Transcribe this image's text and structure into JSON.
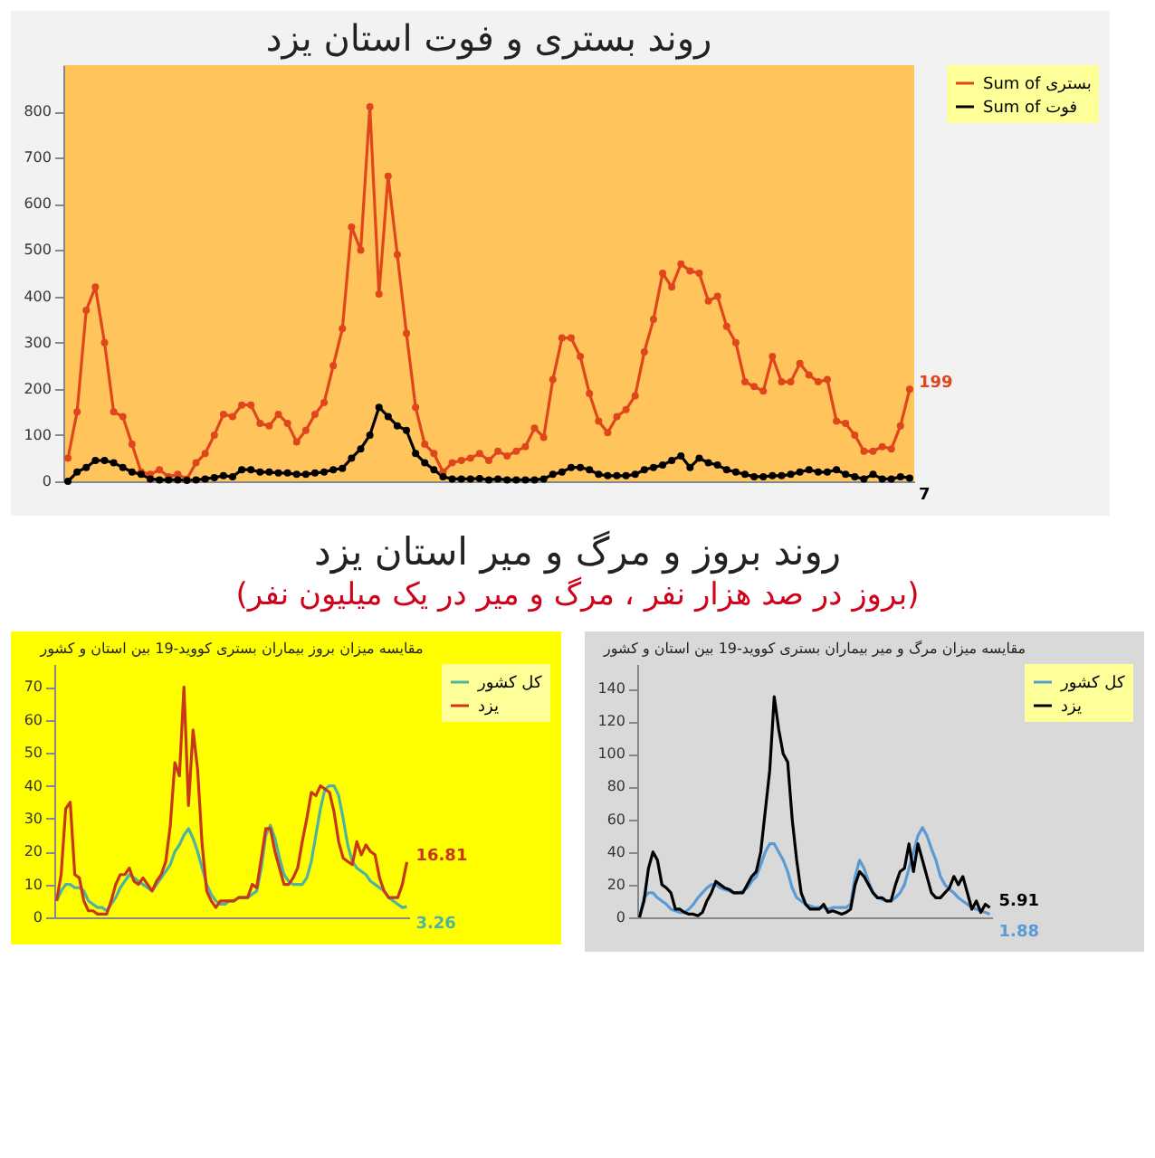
{
  "chart_data": [
    {
      "type": "line",
      "title": "روند بستری و فوت استان یزد",
      "categories": [
        null,
        null,
        null,
        null,
        null,
        null,
        null,
        null,
        null,
        null,
        null,
        null,
        null,
        null,
        null,
        null,
        null,
        null,
        null,
        null,
        null,
        null,
        null,
        null,
        null,
        null,
        null,
        null,
        null,
        null,
        null,
        null,
        null,
        null,
        null,
        null,
        null,
        null,
        null,
        null,
        null,
        null,
        null,
        null,
        null,
        null,
        null,
        null,
        null,
        null,
        null,
        null,
        null,
        null,
        null,
        null,
        null,
        null,
        null,
        null,
        null,
        null,
        null,
        null,
        null,
        null,
        null,
        null,
        null,
        null,
        null,
        null,
        null,
        null,
        null,
        null,
        null,
        null,
        null,
        null,
        null,
        null,
        null,
        null,
        null,
        null,
        null,
        null,
        null,
        null,
        null,
        null,
        null
      ],
      "ylim": [
        0,
        900
      ],
      "yticks": [
        0,
        100,
        200,
        300,
        400,
        500,
        600,
        700,
        800
      ],
      "legend": "right",
      "marker": "circle",
      "series": [
        {
          "name": "Sum of بستری",
          "color": "#e0461c",
          "values": [
            50,
            150,
            370,
            420,
            300,
            150,
            140,
            80,
            20,
            15,
            25,
            10,
            15,
            5,
            40,
            60,
            100,
            145,
            140,
            165,
            165,
            125,
            120,
            145,
            125,
            85,
            110,
            145,
            170,
            250,
            330,
            550,
            500,
            810,
            405,
            660,
            490,
            320,
            160,
            80,
            60,
            20,
            40,
            45,
            50,
            60,
            45,
            65,
            55,
            65,
            75,
            115,
            95,
            220,
            310,
            310,
            270,
            190,
            130,
            105,
            140,
            155,
            185,
            280,
            350,
            450,
            420,
            470,
            455,
            450,
            390,
            400,
            335,
            300,
            215,
            205,
            195,
            270,
            215,
            215,
            255,
            230,
            215,
            220,
            130,
            125,
            100,
            65,
            65,
            75,
            70,
            120,
            199
          ],
          "value_labels": [
            null,
            null,
            null,
            null,
            null,
            null,
            null,
            null,
            null,
            null,
            null,
            null,
            null,
            null,
            null,
            null,
            null,
            null,
            null,
            null,
            null,
            null,
            null,
            null,
            null,
            null,
            null,
            null,
            null,
            null,
            null,
            null,
            null,
            null,
            null,
            null,
            null,
            null,
            null,
            null,
            null,
            null,
            null,
            null,
            null,
            null,
            null,
            null,
            null,
            null,
            null,
            null,
            null,
            null,
            null,
            null,
            null,
            null,
            null,
            null,
            null,
            null,
            null,
            null,
            null,
            null,
            null,
            null,
            null,
            null,
            null,
            null,
            null,
            null,
            null,
            null,
            null,
            null,
            null,
            null,
            null,
            null,
            null,
            null,
            null,
            null,
            null,
            null,
            null,
            null,
            null,
            null,
            "199"
          ]
        },
        {
          "name": "Sum of فوت",
          "color": "#000000",
          "values": [
            0,
            20,
            30,
            45,
            45,
            40,
            30,
            20,
            15,
            5,
            3,
            3,
            3,
            2,
            3,
            5,
            8,
            12,
            10,
            25,
            25,
            20,
            20,
            18,
            18,
            15,
            15,
            18,
            20,
            25,
            28,
            50,
            70,
            100,
            160,
            140,
            120,
            110,
            60,
            40,
            25,
            10,
            5,
            5,
            5,
            6,
            3,
            5,
            3,
            3,
            3,
            3,
            5,
            15,
            20,
            30,
            30,
            25,
            15,
            12,
            12,
            12,
            15,
            25,
            30,
            35,
            45,
            55,
            30,
            50,
            40,
            35,
            25,
            20,
            15,
            10,
            10,
            12,
            12,
            15,
            20,
            25,
            20,
            20,
            25,
            15,
            10,
            5,
            15,
            5,
            5,
            10,
            7
          ],
          "value_labels": [
            null,
            null,
            null,
            null,
            null,
            null,
            null,
            null,
            null,
            null,
            null,
            null,
            null,
            null,
            null,
            null,
            null,
            null,
            null,
            null,
            null,
            null,
            null,
            null,
            null,
            null,
            null,
            null,
            null,
            null,
            null,
            null,
            null,
            null,
            null,
            null,
            null,
            null,
            null,
            null,
            null,
            null,
            null,
            null,
            null,
            null,
            null,
            null,
            null,
            null,
            null,
            null,
            null,
            null,
            null,
            null,
            null,
            null,
            null,
            null,
            null,
            null,
            null,
            null,
            null,
            null,
            null,
            null,
            null,
            null,
            null,
            null,
            null,
            null,
            null,
            null,
            null,
            null,
            null,
            null,
            null,
            null,
            null,
            null,
            null,
            null,
            null,
            null,
            null,
            null,
            null,
            null,
            "7"
          ]
        }
      ]
    },
    {
      "type": "other",
      "title": "روند بروز و مرگ و میر استان یزد",
      "subtitle": "(بروز در صد هزار نفر ، مرگ و میر در یک میلیون نفر)"
    },
    {
      "type": "line",
      "title": "مقایسه میزان بروز بیماران بستری کووید-19 بین استان و کشور",
      "categories": [
        null,
        null,
        null,
        null,
        null,
        null,
        null,
        null,
        null,
        null,
        null,
        null,
        null,
        null,
        null,
        null,
        null,
        null,
        null,
        null,
        null,
        null,
        null,
        null,
        null,
        null,
        null,
        null,
        null,
        null,
        null,
        null,
        null,
        null,
        null,
        null,
        null,
        null,
        null,
        null,
        null,
        null,
        null,
        null,
        null,
        null,
        null,
        null,
        null,
        null,
        null,
        null,
        null,
        null,
        null,
        null,
        null,
        null,
        null,
        null,
        null,
        null,
        null,
        null,
        null,
        null,
        null,
        null,
        null,
        null,
        null,
        null,
        null,
        null,
        null,
        null,
        null,
        null
      ],
      "ylim": [
        0,
        77
      ],
      "yticks": [
        0,
        10,
        20,
        30,
        40,
        50,
        60,
        70
      ],
      "legend": "right",
      "series": [
        {
          "name": "کل کشور",
          "color": "#4fb3a0",
          "values": [
            5,
            8,
            10,
            10,
            9,
            9,
            8,
            5,
            4,
            3,
            3,
            2,
            4,
            6,
            9,
            11,
            13,
            12,
            11,
            10,
            9,
            8,
            10,
            12,
            14,
            16,
            20,
            22,
            25,
            27,
            24,
            20,
            15,
            10,
            7,
            5,
            4,
            4,
            5,
            5,
            6,
            6,
            6,
            7,
            8,
            15,
            25,
            28,
            24,
            18,
            13,
            11,
            10,
            10,
            10,
            12,
            17,
            25,
            33,
            39,
            40,
            40,
            37,
            30,
            22,
            17,
            15,
            14,
            13,
            11,
            10,
            9,
            8,
            6,
            5,
            4,
            3,
            3.26
          ],
          "value_labels": [
            null,
            null,
            null,
            null,
            null,
            null,
            null,
            null,
            null,
            null,
            null,
            null,
            null,
            null,
            null,
            null,
            null,
            null,
            null,
            null,
            null,
            null,
            null,
            null,
            null,
            null,
            null,
            null,
            null,
            null,
            null,
            null,
            null,
            null,
            null,
            null,
            null,
            null,
            null,
            null,
            null,
            null,
            null,
            null,
            null,
            null,
            null,
            null,
            null,
            null,
            null,
            null,
            null,
            null,
            null,
            null,
            null,
            null,
            null,
            null,
            null,
            null,
            null,
            null,
            null,
            null,
            null,
            null,
            null,
            null,
            null,
            null,
            null,
            null,
            null,
            null,
            null,
            "3.26"
          ]
        },
        {
          "name": "یزد",
          "color": "#c8361c",
          "values": [
            5,
            13,
            33,
            35,
            13,
            12,
            5,
            2,
            2,
            1,
            1,
            1,
            5,
            10,
            13,
            13,
            15,
            11,
            10,
            12,
            10,
            8,
            11,
            13,
            17,
            28,
            47,
            43,
            70,
            34,
            57,
            45,
            22,
            8,
            5,
            3,
            5,
            5,
            5,
            5,
            6,
            6,
            6,
            10,
            9,
            18,
            27,
            27,
            20,
            15,
            10,
            10,
            12,
            15,
            23,
            30,
            38,
            37,
            40,
            39,
            38,
            32,
            23,
            18,
            17,
            16,
            23,
            19,
            22,
            20,
            19,
            12,
            8,
            6,
            6,
            6,
            10,
            16.81
          ],
          "value_labels": [
            null,
            null,
            null,
            null,
            null,
            null,
            null,
            null,
            null,
            null,
            null,
            null,
            null,
            null,
            null,
            null,
            null,
            null,
            null,
            null,
            null,
            null,
            null,
            null,
            null,
            null,
            null,
            null,
            null,
            null,
            null,
            null,
            null,
            null,
            null,
            null,
            null,
            null,
            null,
            null,
            null,
            null,
            null,
            null,
            null,
            null,
            null,
            null,
            null,
            null,
            null,
            null,
            null,
            null,
            null,
            null,
            null,
            null,
            null,
            null,
            null,
            null,
            null,
            null,
            null,
            null,
            null,
            null,
            null,
            null,
            null,
            null,
            null,
            null,
            null,
            null,
            null,
            "16.81"
          ]
        }
      ]
    },
    {
      "type": "line",
      "title": "مقایسه میزان مرگ و میر بیماران بستری کووید-19 بین استان و کشور",
      "categories": [
        null,
        null,
        null,
        null,
        null,
        null,
        null,
        null,
        null,
        null,
        null,
        null,
        null,
        null,
        null,
        null,
        null,
        null,
        null,
        null,
        null,
        null,
        null,
        null,
        null,
        null,
        null,
        null,
        null,
        null,
        null,
        null,
        null,
        null,
        null,
        null,
        null,
        null,
        null,
        null,
        null,
        null,
        null,
        null,
        null,
        null,
        null,
        null,
        null,
        null,
        null,
        null,
        null,
        null,
        null,
        null,
        null,
        null,
        null,
        null,
        null,
        null,
        null,
        null,
        null,
        null,
        null,
        null,
        null,
        null,
        null,
        null,
        null,
        null,
        null,
        null,
        null,
        null,
        null
      ],
      "ylim": [
        0,
        155
      ],
      "yticks": [
        0,
        20,
        40,
        60,
        80,
        100,
        120,
        140
      ],
      "legend": "right",
      "series": [
        {
          "name": "کل کشور",
          "color": "#5b9bd5",
          "values": [
            0,
            12,
            15,
            15,
            12,
            10,
            8,
            5,
            4,
            3,
            3,
            5,
            8,
            12,
            15,
            18,
            20,
            20,
            18,
            17,
            16,
            15,
            15,
            16,
            18,
            22,
            25,
            32,
            40,
            45,
            45,
            40,
            35,
            28,
            18,
            12,
            10,
            8,
            7,
            6,
            6,
            6,
            5,
            6,
            6,
            6,
            6,
            8,
            25,
            35,
            30,
            22,
            15,
            12,
            11,
            10,
            10,
            12,
            15,
            20,
            30,
            40,
            50,
            55,
            50,
            42,
            35,
            25,
            20,
            17,
            15,
            12,
            10,
            8,
            6,
            5,
            4,
            3,
            1.88
          ],
          "value_labels": [
            null,
            null,
            null,
            null,
            null,
            null,
            null,
            null,
            null,
            null,
            null,
            null,
            null,
            null,
            null,
            null,
            null,
            null,
            null,
            null,
            null,
            null,
            null,
            null,
            null,
            null,
            null,
            null,
            null,
            null,
            null,
            null,
            null,
            null,
            null,
            null,
            null,
            null,
            null,
            null,
            null,
            null,
            null,
            null,
            null,
            null,
            null,
            null,
            null,
            null,
            null,
            null,
            null,
            null,
            null,
            null,
            null,
            null,
            null,
            null,
            null,
            null,
            null,
            null,
            null,
            null,
            null,
            null,
            null,
            null,
            null,
            null,
            null,
            null,
            null,
            null,
            null,
            null,
            "1.88"
          ]
        },
        {
          "name": "یزد",
          "color": "#000000",
          "values": [
            0,
            10,
            30,
            40,
            35,
            20,
            18,
            15,
            5,
            5,
            3,
            2,
            2,
            1,
            3,
            10,
            15,
            22,
            20,
            18,
            17,
            15,
            15,
            15,
            20,
            25,
            28,
            40,
            65,
            90,
            135,
            115,
            100,
            95,
            60,
            35,
            15,
            8,
            5,
            5,
            5,
            8,
            3,
            4,
            3,
            2,
            3,
            5,
            20,
            28,
            25,
            20,
            15,
            12,
            12,
            10,
            10,
            20,
            28,
            30,
            45,
            28,
            45,
            35,
            25,
            15,
            12,
            12,
            15,
            18,
            25,
            20,
            25,
            15,
            5,
            10,
            3,
            8,
            5.91
          ],
          "value_labels": [
            null,
            null,
            null,
            null,
            null,
            null,
            null,
            null,
            null,
            null,
            null,
            null,
            null,
            null,
            null,
            null,
            null,
            null,
            null,
            null,
            null,
            null,
            null,
            null,
            null,
            null,
            null,
            null,
            null,
            null,
            null,
            null,
            null,
            null,
            null,
            null,
            null,
            null,
            null,
            null,
            null,
            null,
            null,
            null,
            null,
            null,
            null,
            null,
            null,
            null,
            null,
            null,
            null,
            null,
            null,
            null,
            null,
            null,
            null,
            null,
            null,
            null,
            null,
            null,
            null,
            null,
            null,
            null,
            null,
            null,
            null,
            null,
            null,
            null,
            null,
            null,
            null,
            null,
            "5.91"
          ]
        }
      ]
    }
  ]
}
